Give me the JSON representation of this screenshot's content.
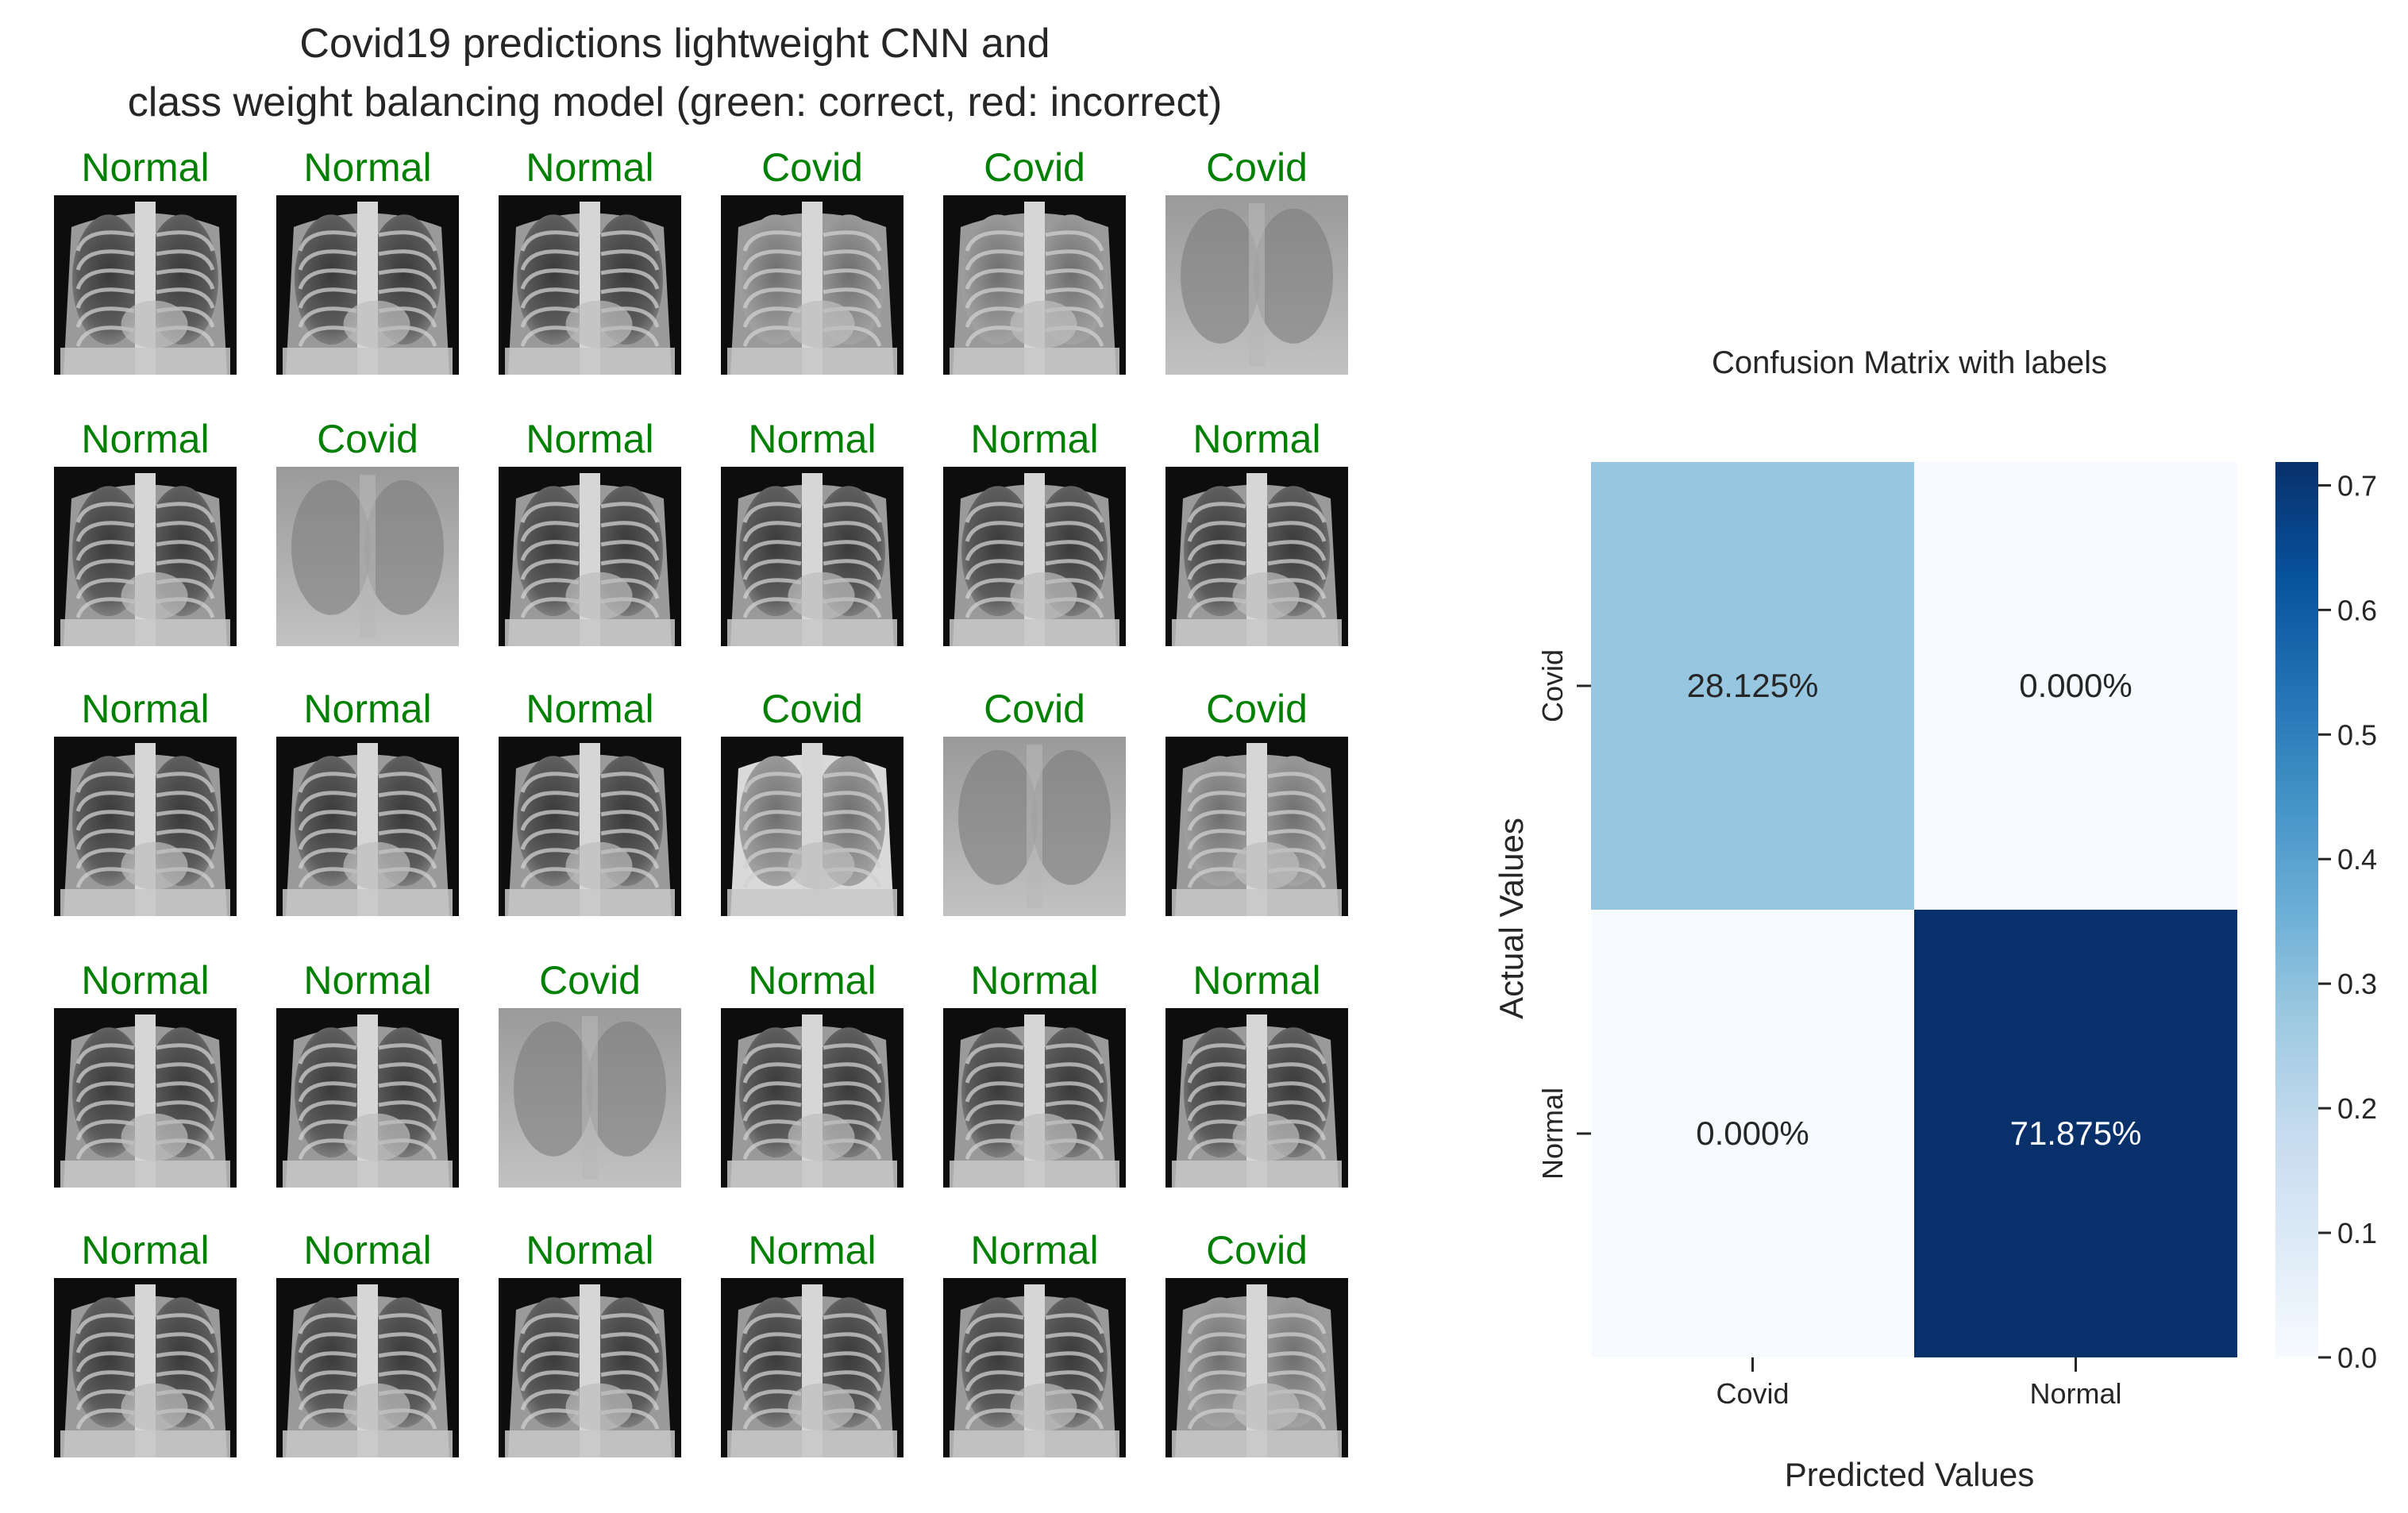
{
  "gallery": {
    "title_line1": "Covid19 predictions lightweight CNN and",
    "title_line2": "class weight balancing model (green: correct, red: incorrect)",
    "correct_color": "#008000",
    "incorrect_color": "#ff0000",
    "rows": [
      [
        {
          "label": "Normal",
          "correct": true,
          "style": "normal-xray"
        },
        {
          "label": "Normal",
          "correct": true,
          "style": "normal-xray"
        },
        {
          "label": "Normal",
          "correct": true,
          "style": "normal-xray"
        },
        {
          "label": "Covid",
          "correct": true,
          "style": "covid-xray"
        },
        {
          "label": "Covid",
          "correct": true,
          "style": "covid-xray"
        },
        {
          "label": "Covid",
          "correct": true,
          "style": "covid-haze"
        }
      ],
      [
        {
          "label": "Normal",
          "correct": true,
          "style": "normal-xray"
        },
        {
          "label": "Covid",
          "correct": true,
          "style": "covid-haze"
        },
        {
          "label": "Normal",
          "correct": true,
          "style": "normal-xray"
        },
        {
          "label": "Normal",
          "correct": true,
          "style": "normal-xray"
        },
        {
          "label": "Normal",
          "correct": true,
          "style": "normal-xray"
        },
        {
          "label": "Normal",
          "correct": true,
          "style": "normal-xray"
        }
      ],
      [
        {
          "label": "Normal",
          "correct": true,
          "style": "normal-xray"
        },
        {
          "label": "Normal",
          "correct": true,
          "style": "normal-xray"
        },
        {
          "label": "Normal",
          "correct": true,
          "style": "normal-xray"
        },
        {
          "label": "Covid",
          "correct": true,
          "style": "covid-bright"
        },
        {
          "label": "Covid",
          "correct": true,
          "style": "covid-haze"
        },
        {
          "label": "Covid",
          "correct": true,
          "style": "covid-xray"
        }
      ],
      [
        {
          "label": "Normal",
          "correct": true,
          "style": "normal-xray"
        },
        {
          "label": "Normal",
          "correct": true,
          "style": "normal-xray"
        },
        {
          "label": "Covid",
          "correct": true,
          "style": "covid-haze"
        },
        {
          "label": "Normal",
          "correct": true,
          "style": "normal-xray"
        },
        {
          "label": "Normal",
          "correct": true,
          "style": "normal-xray"
        },
        {
          "label": "Normal",
          "correct": true,
          "style": "normal-xray"
        }
      ],
      [
        {
          "label": "Normal",
          "correct": true,
          "style": "normal-xray"
        },
        {
          "label": "Normal",
          "correct": true,
          "style": "normal-xray"
        },
        {
          "label": "Normal",
          "correct": true,
          "style": "normal-xray"
        },
        {
          "label": "Normal",
          "correct": true,
          "style": "normal-xray"
        },
        {
          "label": "Normal",
          "correct": true,
          "style": "normal-xray"
        },
        {
          "label": "Covid",
          "correct": true,
          "style": "covid-xray"
        }
      ]
    ]
  },
  "chart_data": {
    "type": "heatmap",
    "title": "Confusion Matrix with labels",
    "xlabel": "Predicted Values",
    "ylabel": "Actual Values",
    "x_categories": [
      "Covid",
      "Normal"
    ],
    "y_categories": [
      "Covid",
      "Normal"
    ],
    "values": [
      [
        0.28125,
        0.0
      ],
      [
        0.0,
        0.71875
      ]
    ],
    "annotations": [
      [
        "28.125%",
        "0.000%"
      ],
      [
        "0.000%",
        "71.875%"
      ]
    ],
    "colormap": "Blues",
    "colorbar": {
      "vmin": 0.0,
      "vmax": 0.71875,
      "ticks": [
        0.0,
        0.1,
        0.2,
        0.3,
        0.4,
        0.5,
        0.6,
        0.7
      ],
      "tick_labels": [
        "0.0",
        "0.1",
        "0.2",
        "0.3",
        "0.4",
        "0.5",
        "0.6",
        "0.7"
      ]
    }
  }
}
